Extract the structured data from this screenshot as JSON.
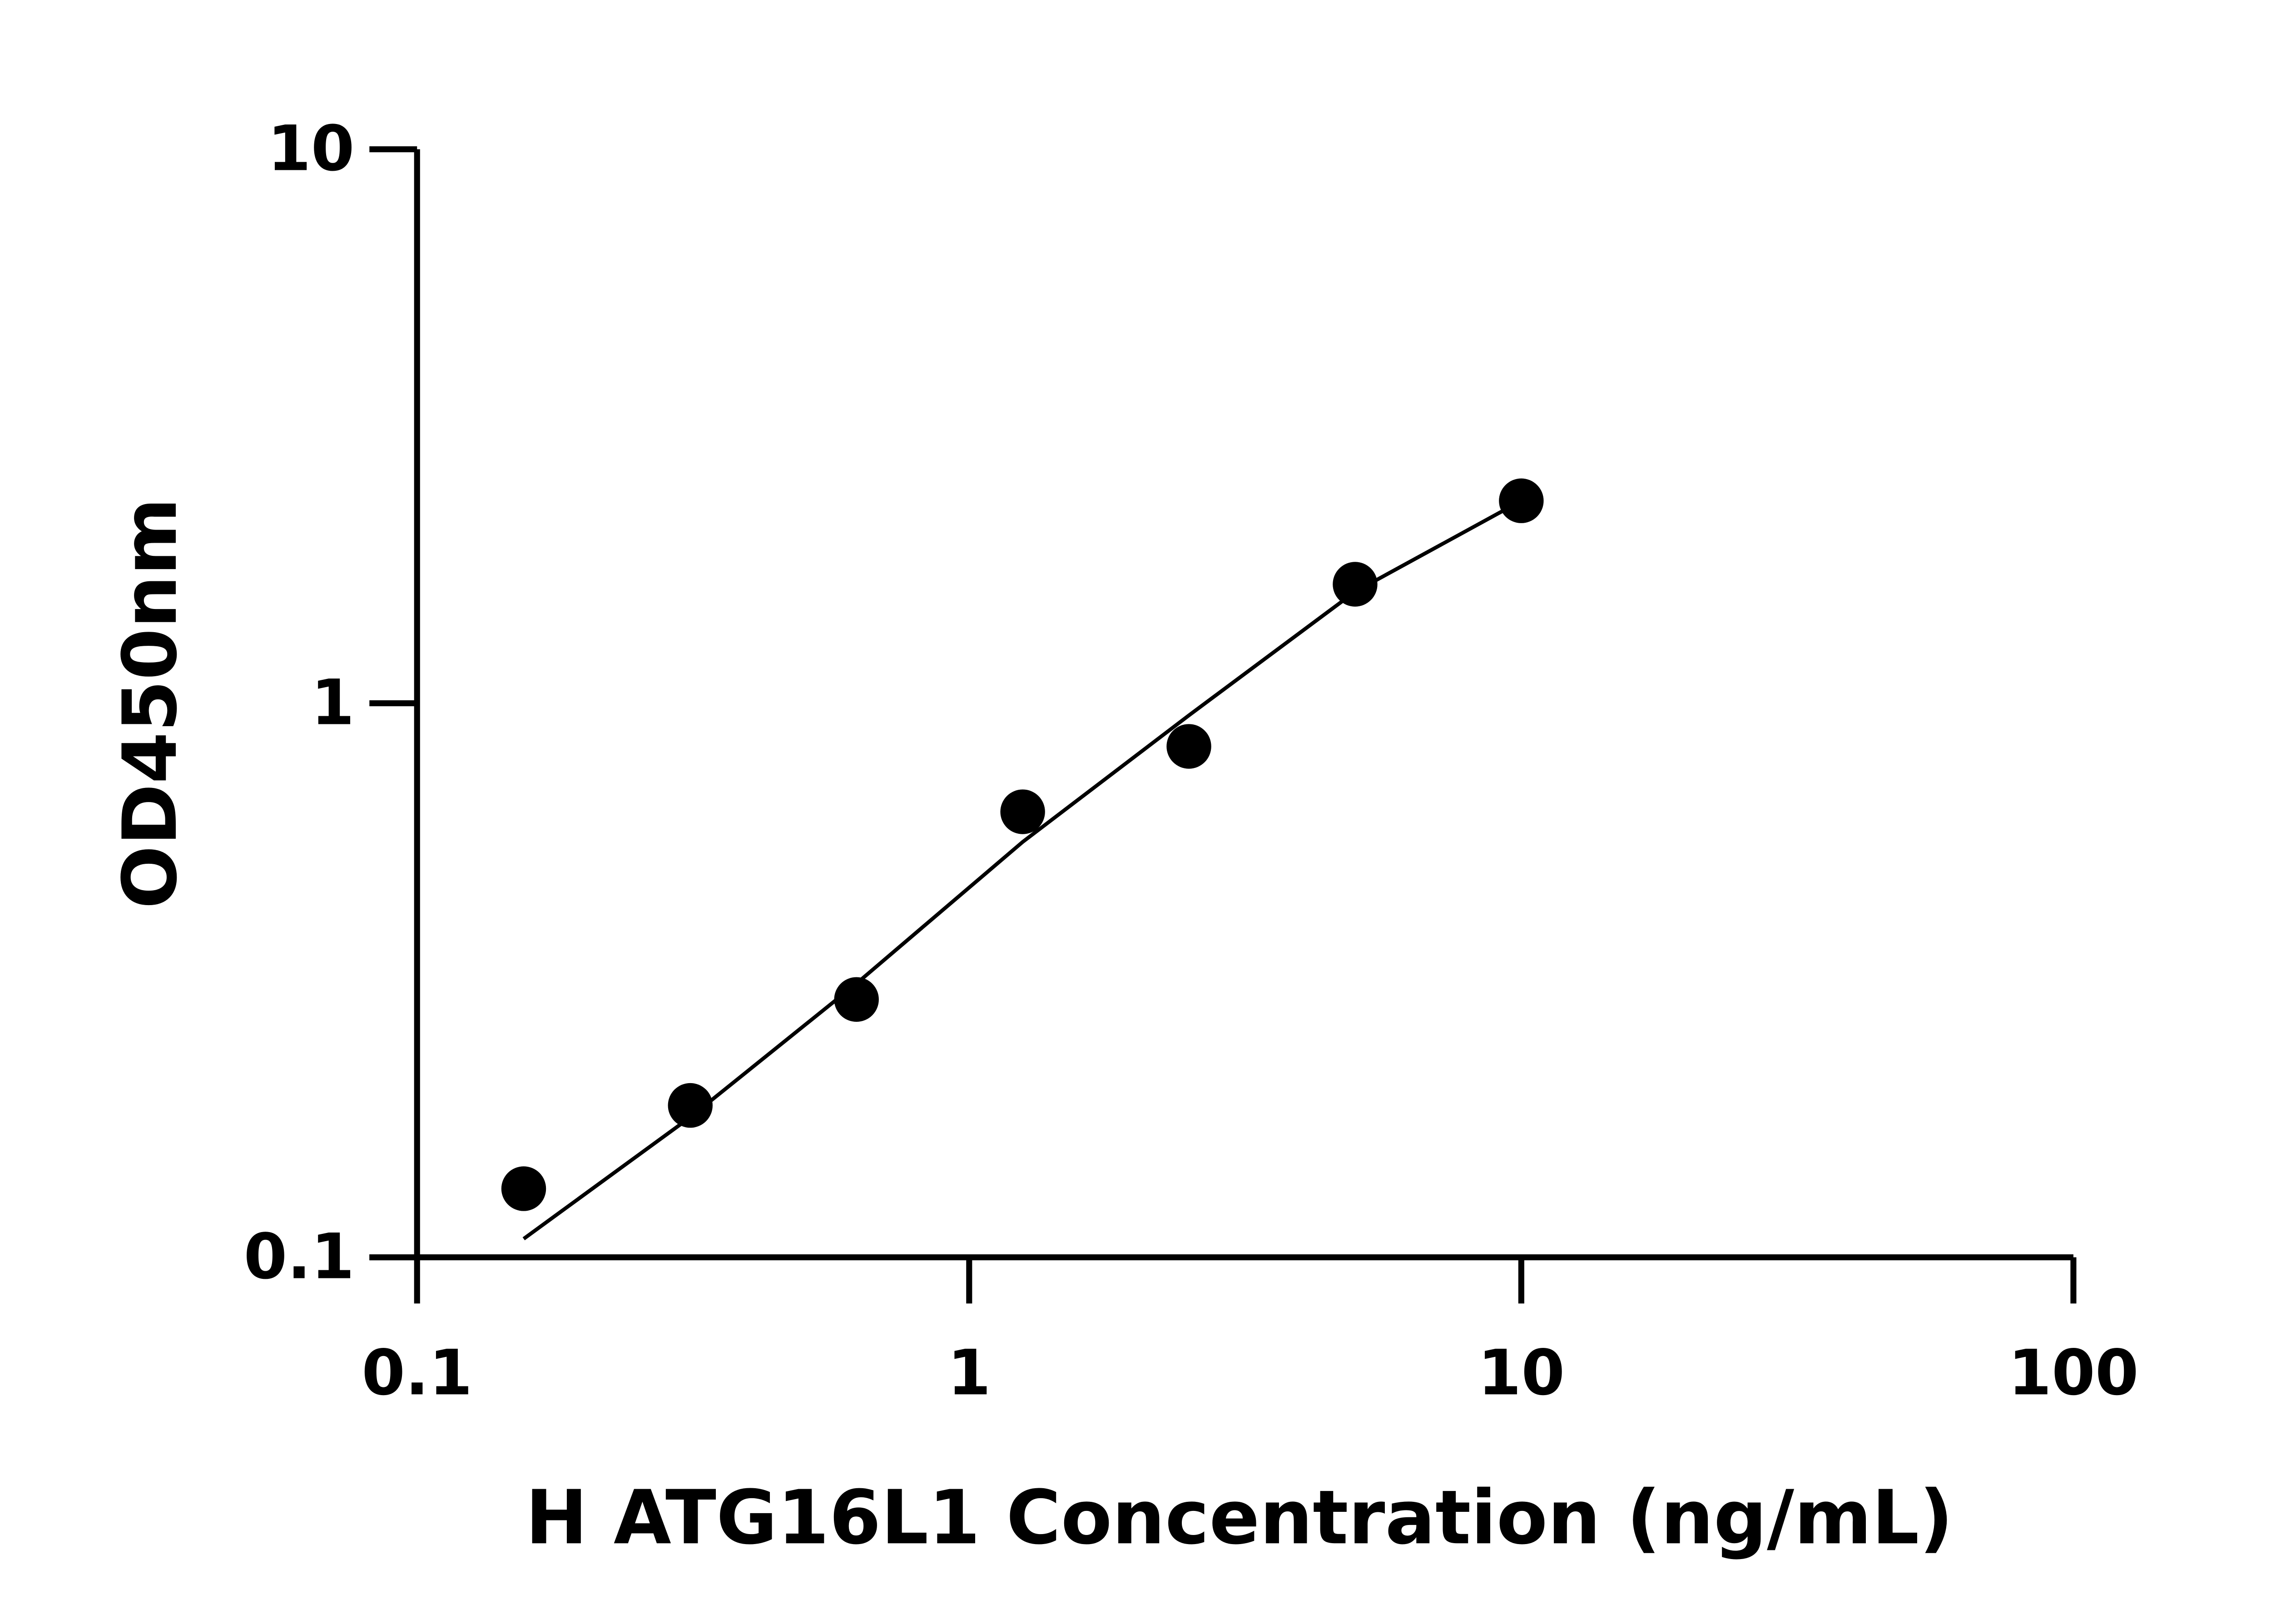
{
  "chart_data": {
    "type": "scatter",
    "xlabel": "H ATG16L1 Concentration (ng/mL)",
    "ylabel": "OD450nm",
    "xscale": "log",
    "yscale": "log",
    "xlim": [
      0.1,
      100
    ],
    "ylim": [
      0.1,
      10
    ],
    "xticks": [
      0.1,
      1,
      10,
      100
    ],
    "yticks": [
      0.1,
      1,
      10
    ],
    "series": [
      {
        "color": "#000000",
        "x": [
          0.156,
          0.3125,
          0.625,
          1.25,
          2.5,
          5,
          10
        ],
        "values": [
          0.133,
          0.188,
          0.292,
          0.637,
          0.836,
          1.64,
          2.32
        ]
      },
      {
        "type": "line",
        "color": "#000000",
        "x": [
          0.156,
          0.3125,
          0.625,
          1.25,
          2.5,
          5,
          10
        ],
        "values": [
          0.108,
          0.179,
          0.312,
          0.562,
          0.951,
          1.59,
          2.32
        ]
      }
    ]
  }
}
